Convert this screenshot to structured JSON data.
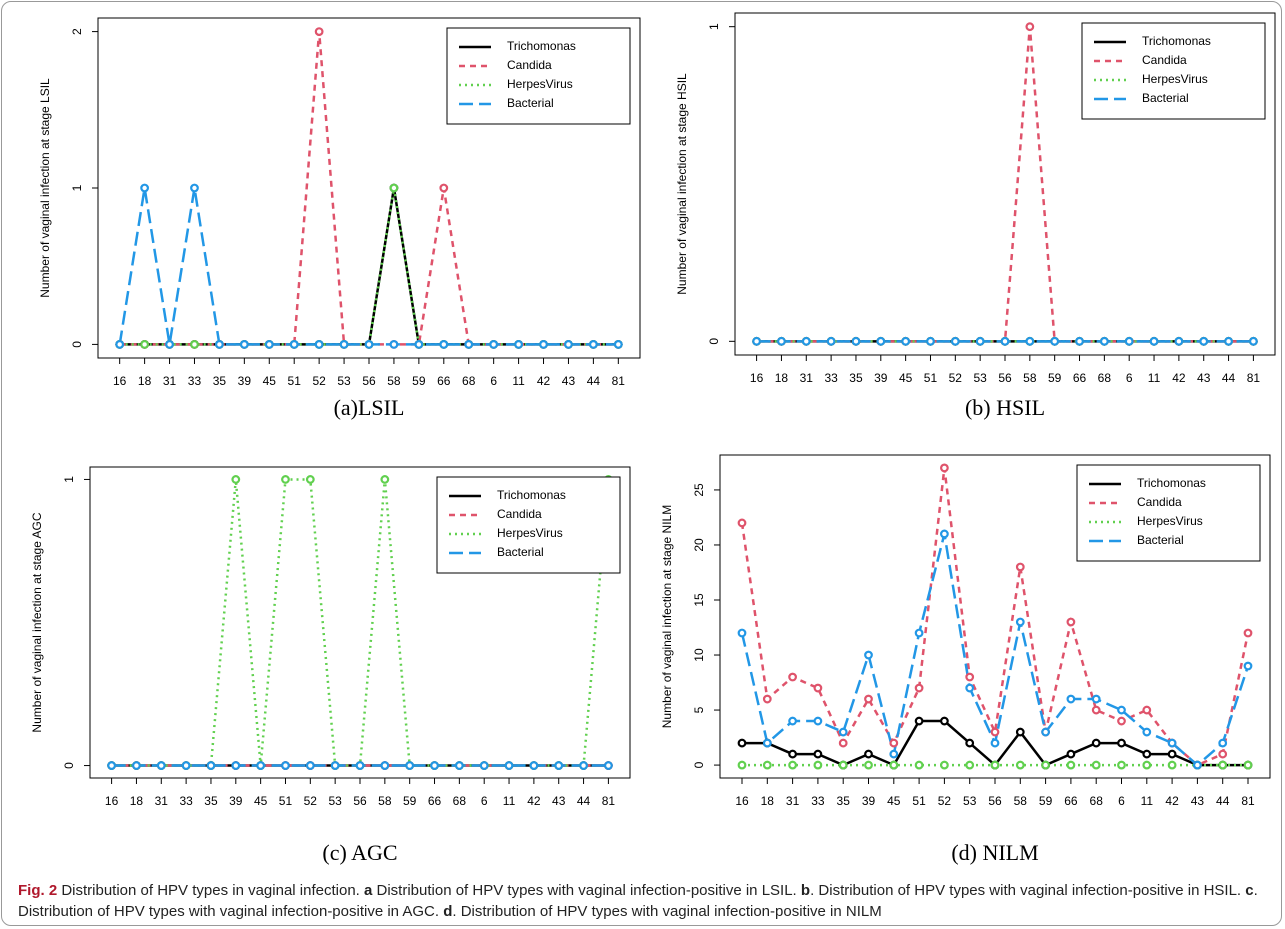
{
  "chart_data": [
    {
      "type": "line",
      "title": "(a)LSIL",
      "y_label": "Number of vaginal infection at stage LSIL",
      "categories": [
        "16",
        "18",
        "31",
        "33",
        "35",
        "39",
        "45",
        "51",
        "52",
        "53",
        "56",
        "58",
        "59",
        "66",
        "68",
        "6",
        "11",
        "42",
        "43",
        "44",
        "81"
      ],
      "series": [
        {
          "name": "Trichomonas",
          "color": "#000000",
          "line_style": "solid",
          "values": [
            0,
            0,
            0,
            0,
            0,
            0,
            0,
            0,
            0,
            0,
            0,
            1,
            0,
            0,
            0,
            0,
            0,
            0,
            0,
            0,
            0
          ]
        },
        {
          "name": "Candida",
          "color": "#df536b",
          "line_style": "dashed",
          "values": [
            0,
            0,
            0,
            0,
            0,
            0,
            0,
            0,
            2,
            0,
            0,
            0,
            0,
            1,
            0,
            0,
            0,
            0,
            0,
            0,
            0
          ]
        },
        {
          "name": "HerpesVirus",
          "color": "#61d04f",
          "line_style": "dotted",
          "values": [
            0,
            0,
            0,
            0,
            0,
            0,
            0,
            0,
            0,
            0,
            0,
            1,
            0,
            0,
            0,
            0,
            0,
            0,
            0,
            0,
            0
          ]
        },
        {
          "name": "Bacterial",
          "color": "#2297e6",
          "line_style": "longdash",
          "values": [
            0,
            1,
            0,
            1,
            0,
            0,
            0,
            0,
            0,
            0,
            0,
            0,
            0,
            0,
            0,
            0,
            0,
            0,
            0,
            0,
            0
          ]
        }
      ],
      "ylim": [
        0,
        2
      ],
      "yticks": [
        0,
        1,
        2
      ],
      "legend": "top-right"
    },
    {
      "type": "line",
      "title": "(b) HSIL",
      "y_label": "Number of vaginal infection at stage HSIL",
      "categories": [
        "16",
        "18",
        "31",
        "33",
        "35",
        "39",
        "45",
        "51",
        "52",
        "53",
        "56",
        "58",
        "59",
        "66",
        "68",
        "6",
        "11",
        "42",
        "43",
        "44",
        "81"
      ],
      "series": [
        {
          "name": "Trichomonas",
          "color": "#000000",
          "line_style": "solid",
          "values": [
            0,
            0,
            0,
            0,
            0,
            0,
            0,
            0,
            0,
            0,
            0,
            0,
            0,
            0,
            0,
            0,
            0,
            0,
            0,
            0,
            0
          ]
        },
        {
          "name": "Candida",
          "color": "#df536b",
          "line_style": "dashed",
          "values": [
            0,
            0,
            0,
            0,
            0,
            0,
            0,
            0,
            0,
            0,
            0,
            1,
            0,
            0,
            0,
            0,
            0,
            0,
            0,
            0,
            0
          ]
        },
        {
          "name": "HerpesVirus",
          "color": "#61d04f",
          "line_style": "dotted",
          "values": [
            0,
            0,
            0,
            0,
            0,
            0,
            0,
            0,
            0,
            0,
            0,
            0,
            0,
            0,
            0,
            0,
            0,
            0,
            0,
            0,
            0
          ]
        },
        {
          "name": "Bacterial",
          "color": "#2297e6",
          "line_style": "longdash",
          "values": [
            0,
            0,
            0,
            0,
            0,
            0,
            0,
            0,
            0,
            0,
            0,
            0,
            0,
            0,
            0,
            0,
            0,
            0,
            0,
            0,
            0
          ]
        }
      ],
      "ylim": [
        0,
        1
      ],
      "yticks": [
        0,
        1
      ],
      "legend": "top-right"
    },
    {
      "type": "line",
      "title": "(c) AGC",
      "y_label": "Number of vaginal infection at stage AGC",
      "categories": [
        "16",
        "18",
        "31",
        "33",
        "35",
        "39",
        "45",
        "51",
        "52",
        "53",
        "56",
        "58",
        "59",
        "66",
        "68",
        "6",
        "11",
        "42",
        "43",
        "44",
        "81"
      ],
      "series": [
        {
          "name": "Trichomonas",
          "color": "#000000",
          "line_style": "solid",
          "values": [
            0,
            0,
            0,
            0,
            0,
            0,
            0,
            0,
            0,
            0,
            0,
            0,
            0,
            0,
            0,
            0,
            0,
            0,
            0,
            0,
            0
          ]
        },
        {
          "name": "Candida",
          "color": "#df536b",
          "line_style": "dashed",
          "values": [
            0,
            0,
            0,
            0,
            0,
            0,
            0,
            0,
            0,
            0,
            0,
            0,
            0,
            0,
            0,
            0,
            0,
            0,
            0,
            0,
            0
          ]
        },
        {
          "name": "HerpesVirus",
          "color": "#61d04f",
          "line_style": "dotted",
          "values": [
            0,
            0,
            0,
            0,
            0,
            1,
            0,
            1,
            1,
            0,
            0,
            1,
            0,
            0,
            0,
            0,
            0,
            0,
            0,
            0,
            1
          ]
        },
        {
          "name": "Bacterial",
          "color": "#2297e6",
          "line_style": "longdash",
          "values": [
            0,
            0,
            0,
            0,
            0,
            0,
            0,
            0,
            0,
            0,
            0,
            0,
            0,
            0,
            0,
            0,
            0,
            0,
            0,
            0,
            0
          ]
        }
      ],
      "ylim": [
        0,
        1
      ],
      "yticks": [
        0,
        1
      ],
      "legend": "top-right"
    },
    {
      "type": "line",
      "title": "(d) NILM",
      "y_label": "Number of vaginal infection at stage NILM",
      "categories": [
        "16",
        "18",
        "31",
        "33",
        "35",
        "39",
        "45",
        "51",
        "52",
        "53",
        "56",
        "58",
        "59",
        "66",
        "68",
        "6",
        "11",
        "42",
        "43",
        "44",
        "81"
      ],
      "series": [
        {
          "name": "Trichomonas",
          "color": "#000000",
          "line_style": "solid",
          "values": [
            2,
            2,
            1,
            1,
            0,
            1,
            0,
            4,
            4,
            2,
            0,
            3,
            0,
            1,
            2,
            2,
            1,
            1,
            0,
            0,
            0
          ]
        },
        {
          "name": "Candida",
          "color": "#df536b",
          "line_style": "dashed",
          "values": [
            22,
            6,
            8,
            7,
            2,
            6,
            2,
            7,
            27,
            8,
            3,
            18,
            3,
            13,
            5,
            4,
            5,
            2,
            0,
            1,
            12
          ]
        },
        {
          "name": "HerpesVirus",
          "color": "#61d04f",
          "line_style": "dotted",
          "values": [
            0,
            0,
            0,
            0,
            0,
            0,
            0,
            0,
            0,
            0,
            0,
            0,
            0,
            0,
            0,
            0,
            0,
            0,
            0,
            0,
            0
          ]
        },
        {
          "name": "Bacterial",
          "color": "#2297e6",
          "line_style": "longdash",
          "values": [
            12,
            2,
            4,
            4,
            3,
            10,
            1,
            12,
            21,
            7,
            2,
            13,
            3,
            6,
            6,
            5,
            3,
            2,
            0,
            2,
            9
          ]
        }
      ],
      "ylim": [
        0,
        27
      ],
      "yticks": [
        0,
        5,
        10,
        15,
        20,
        25
      ],
      "legend": "top-right"
    }
  ],
  "figure_caption": {
    "label": "Fig. 2",
    "segments": [
      {
        "text": " Distribution of HPV types in vaginal infection. ",
        "bold": false
      },
      {
        "text": "a",
        "bold": true
      },
      {
        "text": " Distribution of HPV types with vaginal infection-positive in LSIL. ",
        "bold": false
      },
      {
        "text": "b",
        "bold": true
      },
      {
        "text": ". Distribution of HPV types with vaginal infection-positive in HSIL. ",
        "bold": false
      },
      {
        "text": "c",
        "bold": true
      },
      {
        "text": ". Distribution of HPV types with vaginal infection-positive in AGC. ",
        "bold": false
      },
      {
        "text": "d",
        "bold": true
      },
      {
        "text": ". Distribution of HPV types with vaginal infection-positive in NILM",
        "bold": false
      }
    ]
  }
}
